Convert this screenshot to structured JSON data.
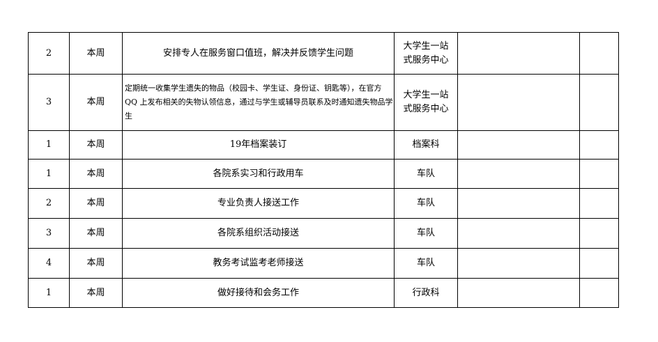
{
  "rows": [
    {
      "no": "2",
      "period": "本周",
      "task": "安排专人在服务窗口值班，解决并反馈学生问题",
      "dept": "大学生一站式服务中心",
      "c5": "",
      "c6": ""
    },
    {
      "no": "3",
      "period": "本周",
      "task": "定期统一收集学生遗失的物品（校园卡、学生证、身份证、钥匙等），在官方 QQ 上发布相关的失物认领信息，通过与学生或辅导员联系及时通知遗失物品学生",
      "dept": "大学生一站式服务中心",
      "c5": "",
      "c6": ""
    },
    {
      "no": "1",
      "period": "本周",
      "task": "19年档案装订",
      "dept": "档案科",
      "c5": "",
      "c6": ""
    },
    {
      "no": "1",
      "period": "本周",
      "task": "各院系实习和行政用车",
      "dept": "车队",
      "c5": "",
      "c6": ""
    },
    {
      "no": "2",
      "period": "本周",
      "task": "专业负责人接送工作",
      "dept": "车队",
      "c5": "",
      "c6": ""
    },
    {
      "no": "3",
      "period": "本周",
      "task": "各院系组织活动接送",
      "dept": "车队",
      "c5": "",
      "c6": ""
    },
    {
      "no": "4",
      "period": "本周",
      "task": "教务考试监考老师接送",
      "dept": "车队",
      "c5": "",
      "c6": ""
    },
    {
      "no": "1",
      "period": "本周",
      "task": "做好接待和会务工作",
      "dept": "行政科",
      "c5": "",
      "c6": ""
    }
  ]
}
